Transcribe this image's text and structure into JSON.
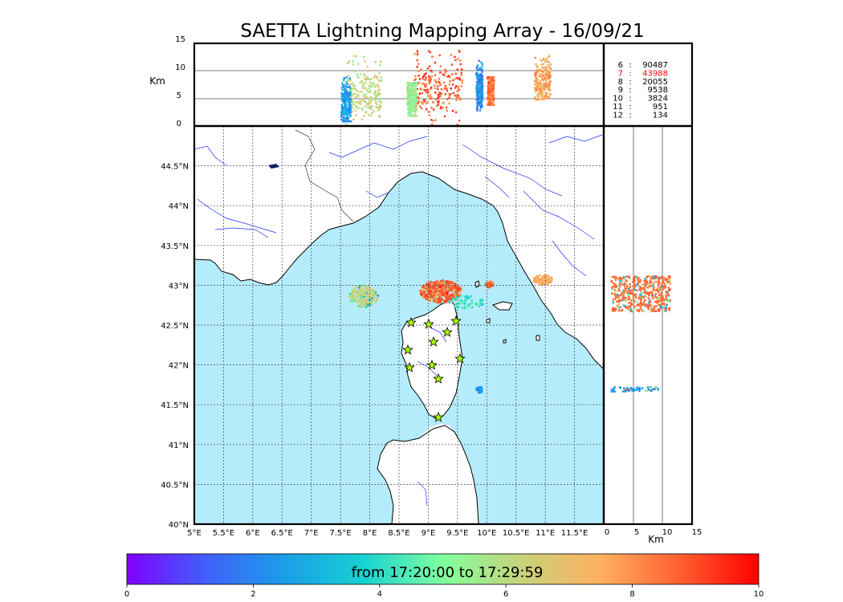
{
  "title": "SAETTA Lightning Mapping Array - 16/09/21",
  "altitude_panel": {
    "ylabel": "Km",
    "yticks": [
      "15",
      "10",
      "5",
      "0"
    ]
  },
  "stats": [
    {
      "k": "6",
      "v": "90487",
      "highlight": false
    },
    {
      "k": "7",
      "v": "43988",
      "highlight": true
    },
    {
      "k": "8",
      "v": "20055",
      "highlight": false
    },
    {
      "k": "9",
      "v": "9538",
      "highlight": false
    },
    {
      "k": "10",
      "v": "3824",
      "highlight": false
    },
    {
      "k": "11",
      "v": "951",
      "highlight": false
    },
    {
      "k": "12",
      "v": "134",
      "highlight": false
    }
  ],
  "map": {
    "lat_ticks": [
      "44.5°N",
      "44°N",
      "43.5°N",
      "43°N",
      "42.5°N",
      "42°N",
      "41.5°N",
      "41°N",
      "40.5°N",
      "40°N"
    ],
    "lon_ticks": [
      "5°E",
      "5.5°E",
      "6°E",
      "6.5°E",
      "7°E",
      "7.5°E",
      "8°E",
      "8.5°E",
      "9°E",
      "9.5°E",
      "10°E",
      "10.5°E",
      "11°E",
      "11.5°E"
    ],
    "lon_range": [
      5.0,
      12.0
    ],
    "lat_range": [
      40.0,
      45.0
    ],
    "sea_color": "#b5ecfb",
    "station_color": "#aaff00",
    "station_marker": "star"
  },
  "side_panel": {
    "xticks": [
      "0",
      "5",
      "10",
      "15"
    ],
    "xlabel": "Km"
  },
  "colorbar": {
    "label": "from 17:20:00 to 17:29:59",
    "ticks": [
      "0",
      "2",
      "4",
      "6",
      "8",
      "10"
    ],
    "range": [
      0,
      10
    ],
    "colormap": "rainbow"
  }
}
